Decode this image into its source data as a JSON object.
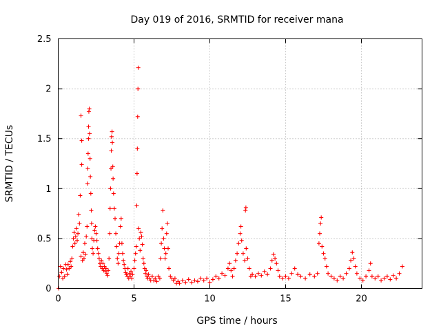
{
  "chart_data": {
    "type": "scatter",
    "title": "Day 019 of 2016, SRMTID for receiver mana",
    "xlabel": "GPS time / hours",
    "ylabel": "SRMTID / TECUs",
    "xlim": [
      0,
      24
    ],
    "ylim": [
      0,
      2.5
    ],
    "x_ticks": [
      0,
      5,
      10,
      15,
      20
    ],
    "x_tick_labels": [
      "0",
      "5",
      "10",
      "15",
      "20"
    ],
    "y_ticks": [
      0,
      0.5,
      1,
      1.5,
      2,
      2.5
    ],
    "y_tick_labels": [
      "0",
      "0.5",
      "1",
      "1.5",
      "2",
      "2.5"
    ],
    "grid": true,
    "marker": "+",
    "color": "#ff0000",
    "series": [
      {
        "name": "SRMTID",
        "points": [
          [
            0.03,
            0.0
          ],
          [
            0.08,
            0.12
          ],
          [
            0.15,
            0.22
          ],
          [
            0.22,
            0.16
          ],
          [
            0.3,
            0.1
          ],
          [
            0.35,
            0.2
          ],
          [
            0.42,
            0.12
          ],
          [
            0.5,
            0.24
          ],
          [
            0.55,
            0.19
          ],
          [
            0.6,
            0.14
          ],
          [
            0.65,
            0.24
          ],
          [
            0.72,
            0.2
          ],
          [
            0.8,
            0.27
          ],
          [
            0.85,
            0.22
          ],
          [
            0.9,
            0.3
          ],
          [
            0.95,
            0.42
          ],
          [
            1.0,
            0.5
          ],
          [
            1.05,
            0.56
          ],
          [
            1.1,
            0.45
          ],
          [
            1.15,
            0.52
          ],
          [
            1.2,
            0.6
          ],
          [
            1.25,
            0.48
          ],
          [
            1.3,
            0.55
          ],
          [
            1.35,
            0.74
          ],
          [
            1.4,
            0.65
          ],
          [
            1.45,
            0.93
          ],
          [
            1.5,
            0.32
          ],
          [
            1.5,
            1.73
          ],
          [
            1.55,
            1.48
          ],
          [
            1.55,
            1.24
          ],
          [
            1.6,
            0.28
          ],
          [
            1.65,
            0.36
          ],
          [
            1.7,
            0.3
          ],
          [
            1.75,
            0.45
          ],
          [
            1.8,
            0.34
          ],
          [
            1.85,
            0.52
          ],
          [
            1.9,
            0.62
          ],
          [
            1.93,
            1.05
          ],
          [
            1.95,
            1.2
          ],
          [
            1.97,
            1.35
          ],
          [
            2.0,
            1.5
          ],
          [
            2.0,
            1.62
          ],
          [
            2.02,
            1.77
          ],
          [
            2.05,
            1.8
          ],
          [
            2.07,
            1.55
          ],
          [
            2.1,
            1.3
          ],
          [
            2.12,
            1.12
          ],
          [
            2.15,
            0.95
          ],
          [
            2.18,
            0.78
          ],
          [
            2.2,
            0.65
          ],
          [
            2.22,
            0.5
          ],
          [
            2.25,
            0.4
          ],
          [
            2.3,
            0.35
          ],
          [
            2.35,
            0.48
          ],
          [
            2.4,
            0.58
          ],
          [
            2.45,
            0.62
          ],
          [
            2.5,
            0.55
          ],
          [
            2.55,
            0.48
          ],
          [
            2.6,
            0.4
          ],
          [
            2.65,
            0.35
          ],
          [
            2.7,
            0.3
          ],
          [
            2.75,
            0.25
          ],
          [
            2.8,
            0.22
          ],
          [
            2.85,
            0.28
          ],
          [
            2.9,
            0.2
          ],
          [
            2.95,
            0.25
          ],
          [
            3.0,
            0.18
          ],
          [
            3.05,
            0.22
          ],
          [
            3.1,
            0.17
          ],
          [
            3.15,
            0.2
          ],
          [
            3.2,
            0.15
          ],
          [
            3.25,
            0.13
          ],
          [
            3.3,
            0.18
          ],
          [
            3.35,
            0.3
          ],
          [
            3.4,
            0.55
          ],
          [
            3.42,
            0.8
          ],
          [
            3.45,
            1.0
          ],
          [
            3.48,
            1.2
          ],
          [
            3.5,
            1.38
          ],
          [
            3.52,
            1.52
          ],
          [
            3.55,
            1.57
          ],
          [
            3.57,
            1.46
          ],
          [
            3.6,
            1.22
          ],
          [
            3.62,
            1.1
          ],
          [
            3.65,
            0.95
          ],
          [
            3.7,
            0.8
          ],
          [
            3.75,
            0.7
          ],
          [
            3.8,
            0.55
          ],
          [
            3.85,
            0.42
          ],
          [
            3.9,
            0.3
          ],
          [
            3.95,
            0.25
          ],
          [
            4.0,
            0.35
          ],
          [
            4.05,
            0.45
          ],
          [
            4.1,
            0.62
          ],
          [
            4.15,
            0.7
          ],
          [
            4.2,
            0.45
          ],
          [
            4.25,
            0.35
          ],
          [
            4.3,
            0.28
          ],
          [
            4.35,
            0.24
          ],
          [
            4.4,
            0.2
          ],
          [
            4.45,
            0.16
          ],
          [
            4.5,
            0.14
          ],
          [
            4.55,
            0.12
          ],
          [
            4.6,
            0.2
          ],
          [
            4.65,
            0.1
          ],
          [
            4.7,
            0.15
          ],
          [
            4.75,
            0.12
          ],
          [
            4.8,
            0.17
          ],
          [
            4.85,
            0.1
          ],
          [
            4.9,
            0.14
          ],
          [
            5.0,
            0.2
          ],
          [
            5.05,
            0.28
          ],
          [
            5.1,
            0.35
          ],
          [
            5.15,
            0.42
          ],
          [
            5.18,
            0.83
          ],
          [
            5.2,
            1.15
          ],
          [
            5.22,
            1.4
          ],
          [
            5.24,
            1.72
          ],
          [
            5.26,
            2.0
          ],
          [
            5.28,
            2.21
          ],
          [
            5.3,
            0.6
          ],
          [
            5.35,
            0.5
          ],
          [
            5.4,
            0.38
          ],
          [
            5.45,
            0.56
          ],
          [
            5.5,
            0.52
          ],
          [
            5.55,
            0.44
          ],
          [
            5.6,
            0.3
          ],
          [
            5.65,
            0.25
          ],
          [
            5.7,
            0.2
          ],
          [
            5.75,
            0.15
          ],
          [
            5.8,
            0.18
          ],
          [
            5.85,
            0.12
          ],
          [
            5.9,
            0.1
          ],
          [
            5.95,
            0.14
          ],
          [
            6.0,
            0.1
          ],
          [
            6.1,
            0.08
          ],
          [
            6.2,
            0.12
          ],
          [
            6.3,
            0.08
          ],
          [
            6.4,
            0.1
          ],
          [
            6.5,
            0.07
          ],
          [
            6.6,
            0.12
          ],
          [
            6.7,
            0.1
          ],
          [
            6.75,
            0.3
          ],
          [
            6.8,
            0.45
          ],
          [
            6.85,
            0.6
          ],
          [
            6.9,
            0.78
          ],
          [
            6.95,
            0.5
          ],
          [
            7.0,
            0.4
          ],
          [
            7.05,
            0.3
          ],
          [
            7.1,
            0.35
          ],
          [
            7.15,
            0.55
          ],
          [
            7.2,
            0.65
          ],
          [
            7.25,
            0.4
          ],
          [
            7.3,
            0.2
          ],
          [
            7.4,
            0.12
          ],
          [
            7.5,
            0.1
          ],
          [
            7.6,
            0.08
          ],
          [
            7.7,
            0.1
          ],
          [
            7.8,
            0.05
          ],
          [
            7.9,
            0.07
          ],
          [
            8.0,
            0.05
          ],
          [
            8.2,
            0.08
          ],
          [
            8.4,
            0.06
          ],
          [
            8.6,
            0.09
          ],
          [
            8.8,
            0.06
          ],
          [
            9.0,
            0.08
          ],
          [
            9.2,
            0.07
          ],
          [
            9.4,
            0.1
          ],
          [
            9.6,
            0.08
          ],
          [
            9.8,
            0.1
          ],
          [
            10.0,
            0.06
          ],
          [
            10.2,
            0.09
          ],
          [
            10.4,
            0.12
          ],
          [
            10.6,
            0.1
          ],
          [
            10.8,
            0.15
          ],
          [
            11.0,
            0.13
          ],
          [
            11.2,
            0.2
          ],
          [
            11.3,
            0.25
          ],
          [
            11.4,
            0.18
          ],
          [
            11.5,
            0.12
          ],
          [
            11.6,
            0.2
          ],
          [
            11.7,
            0.28
          ],
          [
            11.8,
            0.35
          ],
          [
            11.9,
            0.45
          ],
          [
            12.0,
            0.55
          ],
          [
            12.05,
            0.62
          ],
          [
            12.1,
            0.48
          ],
          [
            12.2,
            0.35
          ],
          [
            12.3,
            0.28
          ],
          [
            12.35,
            0.78
          ],
          [
            12.38,
            0.81
          ],
          [
            12.4,
            0.4
          ],
          [
            12.5,
            0.3
          ],
          [
            12.6,
            0.2
          ],
          [
            12.7,
            0.12
          ],
          [
            12.8,
            0.14
          ],
          [
            13.0,
            0.12
          ],
          [
            13.2,
            0.15
          ],
          [
            13.4,
            0.13
          ],
          [
            13.6,
            0.17
          ],
          [
            13.8,
            0.14
          ],
          [
            14.0,
            0.2
          ],
          [
            14.1,
            0.28
          ],
          [
            14.2,
            0.34
          ],
          [
            14.3,
            0.3
          ],
          [
            14.4,
            0.25
          ],
          [
            14.5,
            0.18
          ],
          [
            14.6,
            0.12
          ],
          [
            14.8,
            0.1
          ],
          [
            15.0,
            0.12
          ],
          [
            15.2,
            0.1
          ],
          [
            15.4,
            0.15
          ],
          [
            15.6,
            0.2
          ],
          [
            15.8,
            0.14
          ],
          [
            16.0,
            0.12
          ],
          [
            16.3,
            0.1
          ],
          [
            16.6,
            0.14
          ],
          [
            16.9,
            0.12
          ],
          [
            17.1,
            0.15
          ],
          [
            17.2,
            0.45
          ],
          [
            17.25,
            0.55
          ],
          [
            17.3,
            0.65
          ],
          [
            17.35,
            0.71
          ],
          [
            17.4,
            0.42
          ],
          [
            17.5,
            0.35
          ],
          [
            17.6,
            0.3
          ],
          [
            17.7,
            0.22
          ],
          [
            17.8,
            0.15
          ],
          [
            18.0,
            0.12
          ],
          [
            18.2,
            0.1
          ],
          [
            18.4,
            0.08
          ],
          [
            18.6,
            0.12
          ],
          [
            18.8,
            0.1
          ],
          [
            19.0,
            0.15
          ],
          [
            19.2,
            0.2
          ],
          [
            19.3,
            0.28
          ],
          [
            19.4,
            0.36
          ],
          [
            19.5,
            0.3
          ],
          [
            19.6,
            0.22
          ],
          [
            19.7,
            0.15
          ],
          [
            19.9,
            0.1
          ],
          [
            20.1,
            0.08
          ],
          [
            20.3,
            0.12
          ],
          [
            20.5,
            0.18
          ],
          [
            20.6,
            0.25
          ],
          [
            20.7,
            0.12
          ],
          [
            20.9,
            0.1
          ],
          [
            21.1,
            0.12
          ],
          [
            21.3,
            0.08
          ],
          [
            21.5,
            0.1
          ],
          [
            21.7,
            0.12
          ],
          [
            21.9,
            0.09
          ],
          [
            22.1,
            0.13
          ],
          [
            22.3,
            0.1
          ],
          [
            22.5,
            0.15
          ],
          [
            22.7,
            0.22
          ]
        ]
      }
    ]
  }
}
